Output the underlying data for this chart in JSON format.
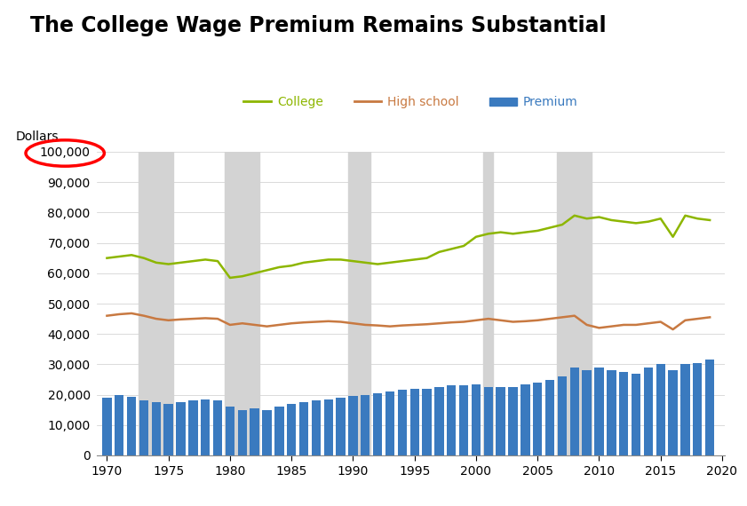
{
  "title": "The College Wage Premium Remains Substantial",
  "ylabel": "Dollars",
  "background_color": "#ffffff",
  "years": [
    1970,
    1971,
    1972,
    1973,
    1974,
    1975,
    1976,
    1977,
    1978,
    1979,
    1980,
    1981,
    1982,
    1983,
    1984,
    1985,
    1986,
    1987,
    1988,
    1989,
    1990,
    1991,
    1992,
    1993,
    1994,
    1995,
    1996,
    1997,
    1998,
    1999,
    2000,
    2001,
    2002,
    2003,
    2004,
    2005,
    2006,
    2007,
    2008,
    2009,
    2010,
    2011,
    2012,
    2013,
    2014,
    2015,
    2016,
    2017,
    2018,
    2019
  ],
  "college": [
    65000,
    65500,
    66000,
    65000,
    63500,
    63000,
    63500,
    64000,
    64500,
    64000,
    58500,
    59000,
    60000,
    61000,
    62000,
    62500,
    63500,
    64000,
    64500,
    64500,
    64000,
    63500,
    63000,
    63500,
    64000,
    64500,
    65000,
    67000,
    68000,
    69000,
    72000,
    73000,
    73500,
    73000,
    73500,
    74000,
    75000,
    76000,
    79000,
    78000,
    78500,
    77500,
    77000,
    76500,
    77000,
    78000,
    72000,
    79000,
    78000,
    77500
  ],
  "highschool": [
    46000,
    46500,
    46800,
    46000,
    45000,
    44500,
    44800,
    45000,
    45200,
    45000,
    43000,
    43500,
    43000,
    42500,
    43000,
    43500,
    43800,
    44000,
    44200,
    44000,
    43500,
    43000,
    42800,
    42500,
    42800,
    43000,
    43200,
    43500,
    43800,
    44000,
    44500,
    45000,
    44500,
    44000,
    44200,
    44500,
    45000,
    45500,
    46000,
    43000,
    42000,
    42500,
    43000,
    43000,
    43500,
    44000,
    41500,
    44500,
    45000,
    45500
  ],
  "premium": [
    19000,
    20000,
    19200,
    18000,
    17500,
    17000,
    17500,
    18000,
    18500,
    18000,
    16000,
    15000,
    15500,
    15000,
    16000,
    17000,
    17500,
    18000,
    18500,
    19000,
    19500,
    20000,
    20500,
    21000,
    21500,
    22000,
    22000,
    22500,
    23000,
    23000,
    23500,
    22500,
    22500,
    22500,
    23500,
    24000,
    25000,
    26000,
    29000,
    28000,
    29000,
    28000,
    27500,
    27000,
    29000,
    30000,
    28000,
    30000,
    30500,
    31500
  ],
  "recession_bands": [
    [
      1973,
      1975
    ],
    [
      1980,
      1982
    ],
    [
      1990,
      1991
    ],
    [
      2001,
      2001
    ],
    [
      2007,
      2009
    ]
  ],
  "college_color": "#8db600",
  "highschool_color": "#c87941",
  "premium_color": "#3a7abf",
  "recession_color": "#d3d3d3",
  "ylim": [
    0,
    100000
  ],
  "yticks": [
    0,
    10000,
    20000,
    30000,
    40000,
    50000,
    60000,
    70000,
    80000,
    90000,
    100000
  ],
  "xticks": [
    1970,
    1975,
    1980,
    1985,
    1990,
    1995,
    2000,
    2005,
    2010,
    2015,
    2020
  ],
  "title_fontsize": 17,
  "axis_fontsize": 10,
  "legend_fontsize": 10
}
